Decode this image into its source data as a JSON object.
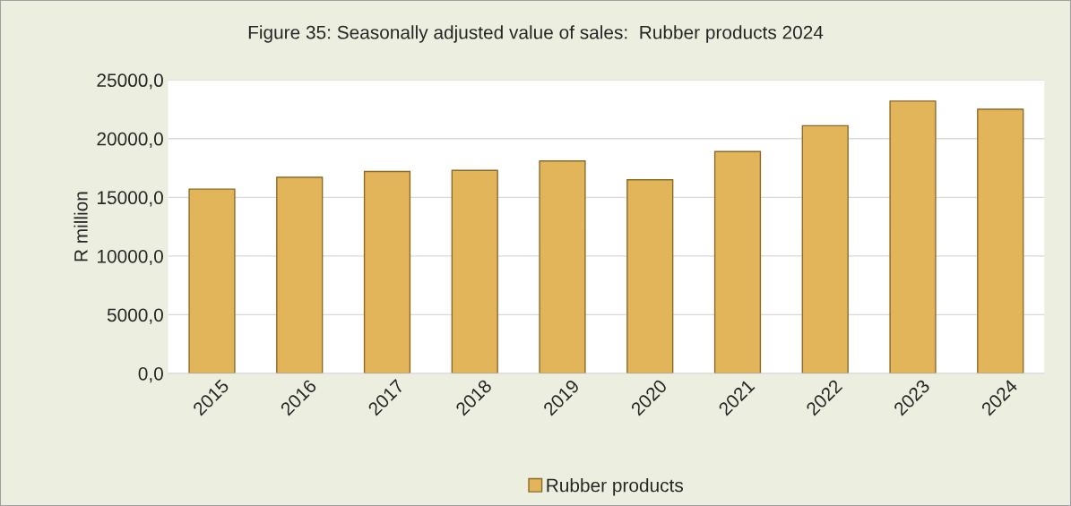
{
  "chart_data": {
    "type": "bar",
    "title": "Figure 35: Seasonally adjusted value of sales:  Rubber products 2024",
    "ylabel": "R million",
    "categories": [
      "2015",
      "2016",
      "2017",
      "2018",
      "2019",
      "2020",
      "2021",
      "2022",
      "2023",
      "2024"
    ],
    "series": [
      {
        "name": "Rubber products",
        "color": "#e3b55a",
        "values": [
          15700,
          16700,
          17200,
          17300,
          18100,
          16500,
          18900,
          21100,
          23200,
          22500
        ]
      }
    ],
    "ylim": [
      0,
      25000
    ],
    "yticks": [
      {
        "value": 0,
        "label": "0,0"
      },
      {
        "value": 5000,
        "label": "5000,0"
      },
      {
        "value": 10000,
        "label": "10000,0"
      },
      {
        "value": 15000,
        "label": "15000,0"
      },
      {
        "value": 20000,
        "label": "20000,0"
      },
      {
        "value": 25000,
        "label": "25000,0"
      }
    ],
    "grid": "y",
    "legend": "bottom"
  }
}
